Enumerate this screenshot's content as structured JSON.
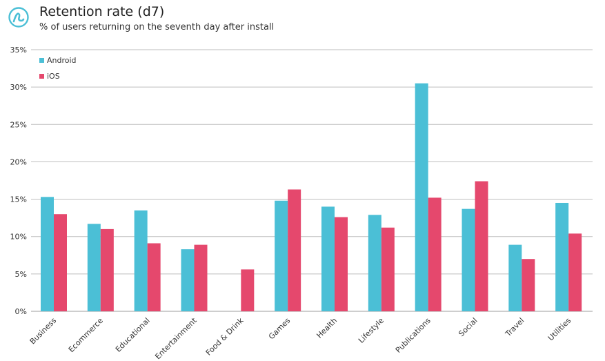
{
  "header": {
    "title": "Retention rate (d7)",
    "subtitle": "% of users returning on the seventh day after install",
    "logo_icon": "adjust-logo-icon"
  },
  "colors": {
    "android": "#4bbfd6",
    "ios": "#e5486d",
    "grid": "#bdbdbd",
    "axis": "#9e9e9e",
    "logo": "#4bbfd6"
  },
  "chart_data": {
    "type": "bar",
    "title": "Retention rate (d7)",
    "subtitle": "% of users returning on the seventh day after install",
    "xlabel": "",
    "ylabel": "",
    "ylim": [
      0,
      35
    ],
    "y_ticks": [
      "0%",
      "5%",
      "10%",
      "15%",
      "20%",
      "25%",
      "30%",
      "35%"
    ],
    "grid": true,
    "legend_position": "top-left",
    "categories": [
      "Business",
      "Ecommerce",
      "Educational",
      "Entertainment",
      "Food & Drink",
      "Games",
      "Health",
      "Lifestyle",
      "Publications",
      "Social",
      "Travel",
      "Utilities"
    ],
    "series": [
      {
        "name": "Android",
        "values": [
          15.3,
          11.7,
          13.5,
          8.3,
          0,
          14.8,
          14.0,
          12.9,
          30.5,
          13.7,
          8.9,
          14.5
        ]
      },
      {
        "name": "iOS",
        "values": [
          13.0,
          11.0,
          9.1,
          8.9,
          5.6,
          16.3,
          12.6,
          11.2,
          15.2,
          17.4,
          7.0,
          10.4
        ]
      }
    ]
  }
}
